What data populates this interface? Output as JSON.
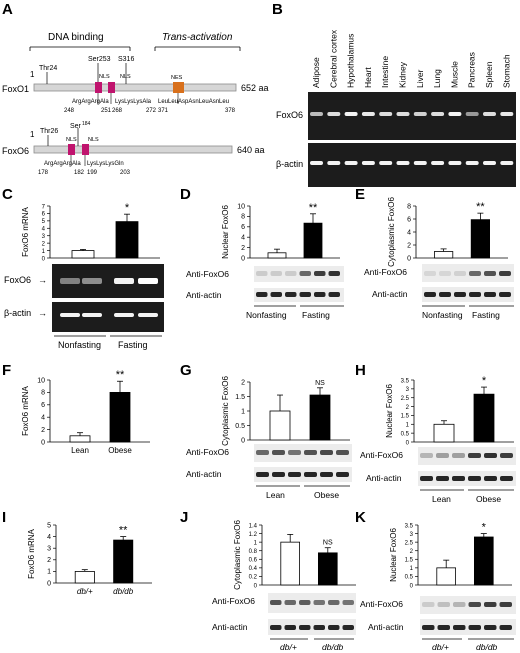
{
  "panel_letters": [
    "A",
    "B",
    "C",
    "D",
    "E",
    "F",
    "G",
    "H",
    "I",
    "J",
    "K"
  ],
  "panel_A": {
    "dna_binding_label": "DNA binding",
    "trans_label": "Trans-activation",
    "foxo1": {
      "name": "FoxO1",
      "length": "652 aa",
      "start": "1",
      "thr": "Thr24",
      "ser": "Ser253",
      "s316": "S316",
      "nls": "NLS",
      "nes": "NES",
      "motif1": "ArgArgArgAla",
      "pos1a": "248",
      "pos1b": "251",
      "motif2": "LysLysLysAla",
      "pos2a": "268",
      "pos2b": "272",
      "motif3": "LeuLeuAspAsnLeuAsnLeu",
      "pos3a": "371",
      "pos3b": "378"
    },
    "foxo6": {
      "name": "FoxO6",
      "length": "640 aa",
      "start": "1",
      "thr": "Thr26",
      "ser": "Ser",
      "ser_sup": "184",
      "nls": "NLS",
      "motif1": "ArgArgArgAla",
      "pos1a": "178",
      "pos1b": "182",
      "motif2": "LysLysLysGln",
      "pos2a": "199",
      "pos2b": "203"
    }
  },
  "panel_B": {
    "tissues": [
      "Adipose",
      "Cerebral cortex",
      "Hypothalamus",
      "Heart",
      "Intestine",
      "Kidney",
      "Liver",
      "Lung",
      "Muscle",
      "Pancreas",
      "Spleen",
      "Stomach"
    ],
    "row_labels": [
      "FoxO6",
      "β-actin"
    ]
  },
  "labels": {
    "foxo6_arrow": "FoxO6",
    "bactin_arrow": "β-actin",
    "anti_foxo6": "Anti-FoxO6",
    "anti_actin": "Anti-actin",
    "nonfasting": "Nonfasting",
    "fasting": "Fasting",
    "lean": "Lean",
    "obese": "Obese",
    "db_plus": "db/+",
    "db_db": "db/db"
  },
  "colors": {
    "nls": "#c0146e",
    "nes": "#d8701c",
    "bar_black": "#000000",
    "gel_dark": "#1c1c1c"
  },
  "chart_data": [
    {
      "id": "C",
      "type": "bar",
      "ylabel": "FoxO6 mRNA",
      "categories": [
        "Nonfasting",
        "Fasting"
      ],
      "values": [
        1.0,
        4.9
      ],
      "errors": [
        0.15,
        1.0
      ],
      "ylim": [
        0,
        7
      ],
      "yticks": [
        0,
        1,
        2,
        3,
        4,
        5,
        6,
        7
      ],
      "significance": [
        "",
        "*"
      ]
    },
    {
      "id": "D",
      "type": "bar",
      "ylabel": "Nuclear FoxO6",
      "categories": [
        "Nonfasting",
        "Fasting"
      ],
      "values": [
        1.0,
        6.7
      ],
      "errors": [
        0.7,
        1.8
      ],
      "ylim": [
        0,
        10
      ],
      "yticks": [
        0,
        2,
        4,
        6,
        8,
        10
      ],
      "significance": [
        "",
        "**"
      ]
    },
    {
      "id": "E",
      "type": "bar",
      "ylabel": "Cytoplasmic FoxO6",
      "categories": [
        "Nonfasting",
        "Fasting"
      ],
      "values": [
        1.0,
        5.9
      ],
      "errors": [
        0.4,
        1.0
      ],
      "ylim": [
        0,
        8
      ],
      "yticks": [
        0,
        2,
        4,
        6,
        8
      ],
      "significance": [
        "",
        "**"
      ]
    },
    {
      "id": "F",
      "type": "bar",
      "ylabel": "FoxO6 mRNA",
      "categories": [
        "Lean",
        "Obese"
      ],
      "values": [
        1.0,
        8.0
      ],
      "errors": [
        0.5,
        1.8
      ],
      "ylim": [
        0,
        10
      ],
      "yticks": [
        0,
        2,
        4,
        6,
        8,
        10
      ],
      "significance": [
        "",
        "**"
      ]
    },
    {
      "id": "G",
      "type": "bar",
      "ylabel": "Cytoplasmic FoxO6",
      "categories": [
        "Lean",
        "Obese"
      ],
      "values": [
        1.0,
        1.55
      ],
      "errors": [
        0.55,
        0.25
      ],
      "ylim": [
        0,
        2
      ],
      "yticks": [
        0,
        0.5,
        1,
        1.5,
        2
      ],
      "significance": [
        "",
        "NS"
      ]
    },
    {
      "id": "H",
      "type": "bar",
      "ylabel": "Nuclear FoxO6",
      "categories": [
        "Lean",
        "Obese"
      ],
      "values": [
        1.0,
        2.7
      ],
      "errors": [
        0.2,
        0.4
      ],
      "ylim": [
        0,
        3.5
      ],
      "yticks": [
        0,
        0.5,
        1,
        1.5,
        2,
        2.5,
        3,
        3.5
      ],
      "significance": [
        "",
        "*"
      ]
    },
    {
      "id": "I",
      "type": "bar",
      "ylabel": "FoxO6 mRNA",
      "categories": [
        "db/+",
        "db/db"
      ],
      "values": [
        1.0,
        3.7
      ],
      "errors": [
        0.15,
        0.3
      ],
      "ylim": [
        0,
        5
      ],
      "yticks": [
        0,
        1,
        2,
        3,
        4,
        5
      ],
      "significance": [
        "",
        "**"
      ]
    },
    {
      "id": "J",
      "type": "bar",
      "ylabel": "Cytoplasmic FoxO6",
      "categories": [
        "db/+",
        "db/db"
      ],
      "values": [
        1.0,
        0.75
      ],
      "errors": [
        0.18,
        0.12
      ],
      "ylim": [
        0,
        1.4
      ],
      "yticks": [
        0,
        0.2,
        0.4,
        0.6,
        0.8,
        1.0,
        1.2,
        1.4
      ],
      "significance": [
        "",
        "NS"
      ]
    },
    {
      "id": "K",
      "type": "bar",
      "ylabel": "Nuclear FoxO6",
      "categories": [
        "db/+",
        "db/db"
      ],
      "values": [
        1.0,
        2.8
      ],
      "errors": [
        0.45,
        0.2
      ],
      "ylim": [
        0,
        3.5
      ],
      "yticks": [
        0,
        0.5,
        1,
        1.5,
        2,
        2.5,
        3,
        3.5
      ],
      "significance": [
        "",
        "*"
      ]
    }
  ]
}
